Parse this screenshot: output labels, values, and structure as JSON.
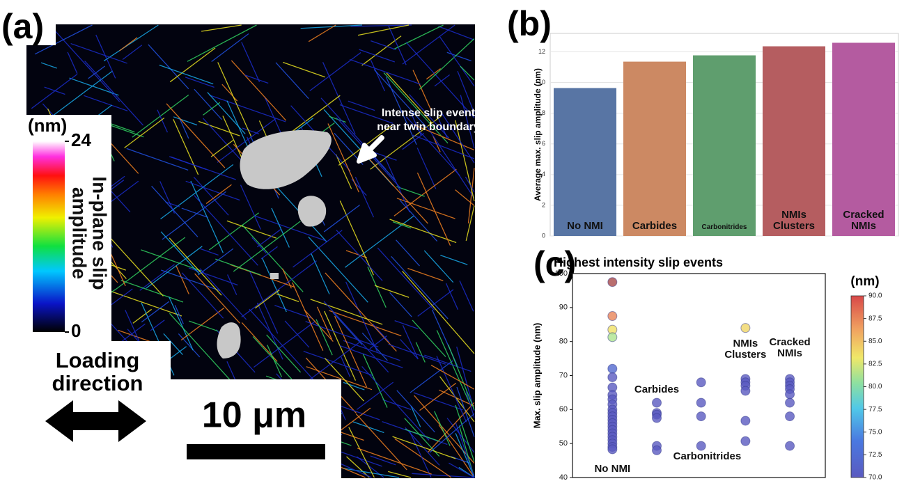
{
  "chart_data": [
    {
      "type": "image",
      "label": "(a)",
      "colorbar": {
        "title": "(nm)",
        "label": "In-plane slip amplitude",
        "ticks": [
          0,
          24
        ]
      },
      "annotation": [
        "Intense slip event",
        "near twin boundary"
      ],
      "loading_label": "Loading direction",
      "scale_bar": "10 μm"
    },
    {
      "type": "bar",
      "label": "(b)",
      "ylabel": "Average max. slip amplitude (nm)",
      "categories": [
        "No NMI",
        "Carbides",
        "Carbonitrides",
        "NMIs Clusters",
        "Cracked NMIs"
      ],
      "values": [
        9.64,
        11.36,
        11.77,
        12.36,
        12.59
      ],
      "colors": [
        "#5875a4",
        "#cc8963",
        "#5f9e6e",
        "#b55d60",
        "#b45ba0"
      ],
      "ylim": [
        0,
        13.2
      ],
      "yticks": [
        0,
        2,
        4,
        6,
        8,
        10,
        12
      ],
      "grid": true
    },
    {
      "type": "scatter",
      "label": "(c)",
      "title": "Highest intensity slip events",
      "ylabel": "Max. slip amplitude (nm)",
      "categories": [
        "No NMI",
        "Carbides",
        "Carbonitrides",
        "NMIs Clusters",
        "Cracked NMIs"
      ],
      "x": [
        0,
        0,
        0,
        0,
        0,
        0,
        0,
        0,
        0,
        0,
        0,
        0,
        0,
        0,
        0,
        0,
        0,
        0,
        0,
        0,
        0,
        0,
        0,
        1,
        1,
        1,
        1,
        1,
        1,
        2,
        2,
        2,
        2,
        3,
        3,
        3,
        3,
        3,
        3,
        3,
        4,
        4,
        4,
        4,
        4,
        4,
        4,
        4
      ],
      "values": [
        97.5,
        87.5,
        83.5,
        81.3,
        72,
        69.5,
        66.5,
        64.3,
        63,
        61.5,
        60,
        59,
        58,
        57,
        56,
        55,
        54,
        53,
        52,
        51,
        50,
        49,
        48.3,
        62,
        59,
        58.5,
        57.5,
        49.3,
        48,
        68,
        62,
        58,
        49.3,
        84,
        69,
        68,
        67,
        65.5,
        56.7,
        50.7,
        69,
        68,
        67,
        66,
        64.5,
        62,
        58,
        49.3
      ],
      "xlim": [
        -0.9,
        4.8
      ],
      "ylim": [
        40,
        100
      ],
      "yticks": [
        40,
        50,
        60,
        70,
        80,
        90,
        100
      ],
      "colorbar": {
        "title": "(nm)",
        "lim": [
          70,
          90
        ],
        "ticks": [
          {
            "value": 70,
            "label": "70.0"
          },
          {
            "value": 72.5,
            "label": "72.5"
          },
          {
            "value": 75,
            "label": "75.0"
          },
          {
            "value": 77.5,
            "label": "77.5"
          },
          {
            "value": 80,
            "label": "80.0"
          },
          {
            "value": 82.5,
            "label": "82.5"
          },
          {
            "value": 85,
            "label": "85.0"
          },
          {
            "value": 87.5,
            "label": "87.5"
          },
          {
            "value": 90,
            "label": "90.0"
          }
        ]
      }
    }
  ]
}
